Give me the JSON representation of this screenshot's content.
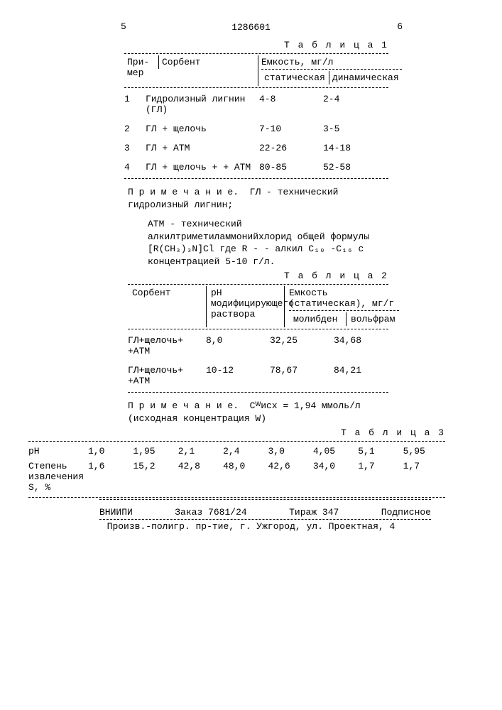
{
  "page_left": "5",
  "page_right": "6",
  "patent_number": "1286601",
  "table1": {
    "label": "Т а б л и ц а 1",
    "h_example": "При-мер",
    "h_sorbent": "Сорбент",
    "h_capacity": "Емкость, мг/л",
    "h_static": "статическая",
    "h_dynamic": "динамическая",
    "rows": [
      {
        "n": "1",
        "sorb": "Гидролизный лигнин (ГЛ)",
        "s": "4-8",
        "d": "2-4"
      },
      {
        "n": "2",
        "sorb": "ГЛ + щелочь",
        "s": "7-10",
        "d": "3-5"
      },
      {
        "n": "3",
        "sorb": "ГЛ + АТМ",
        "s": "22-26",
        "d": "14-18"
      },
      {
        "n": "4",
        "sorb": "ГЛ + щелочь + + АТМ",
        "s": "80-85",
        "d": "52-58"
      }
    ]
  },
  "note1": {
    "lead": "П р и м е ч а н и е.",
    "gl": "ГЛ - технический гидролизный лигнин;",
    "atm": "АТМ - технический алкилтриметиламмонийхлорид общей формулы [R(CH₃)₃N]Cl где R - - алкил C₁₀ -C₁₆ с концентрацией 5-10 г/л."
  },
  "table2": {
    "label": "Т а б л и ц а  2",
    "h_sorbent": "Сорбент",
    "h_ph": "рН модифицирующего раствора",
    "h_capacity": "Емкость (статическая), мг/г",
    "h_mo": "молибден",
    "h_w": "вольфрам",
    "rows": [
      {
        "sorb": "ГЛ+щелочь+ +АТМ",
        "ph": "8,0",
        "mo": "32,25",
        "w": "34,68"
      },
      {
        "sorb": "ГЛ+щелочь+ +АТМ",
        "ph": "10-12",
        "mo": "78,67",
        "w": "84,21"
      }
    ]
  },
  "note2": {
    "lead": "П р и м е ч а н и е.",
    "body": "Cᵂисх = 1,94 ммоль/л (исходная концентрация W)"
  },
  "table3": {
    "label": "Т а б л и ц а  3",
    "h_ph": "рН",
    "h_s": "Степень извлечения S, %",
    "ph": [
      "1,0",
      "1,95",
      "2,1",
      "2,4",
      "3,0",
      "4,05",
      "5,1",
      "5,95"
    ],
    "s": [
      "1,6",
      "15,2",
      "42,8",
      "48,0",
      "42,6",
      "34,0",
      "1,7",
      "1,7"
    ]
  },
  "footer": {
    "org": "ВНИИПИ",
    "order": "Заказ 7681/24",
    "tirazh": "Тираж 347",
    "sub": "Подписное",
    "addr": "Произв.-полигр. пр-тие, г. Ужгород, ул. Проектная, 4"
  }
}
